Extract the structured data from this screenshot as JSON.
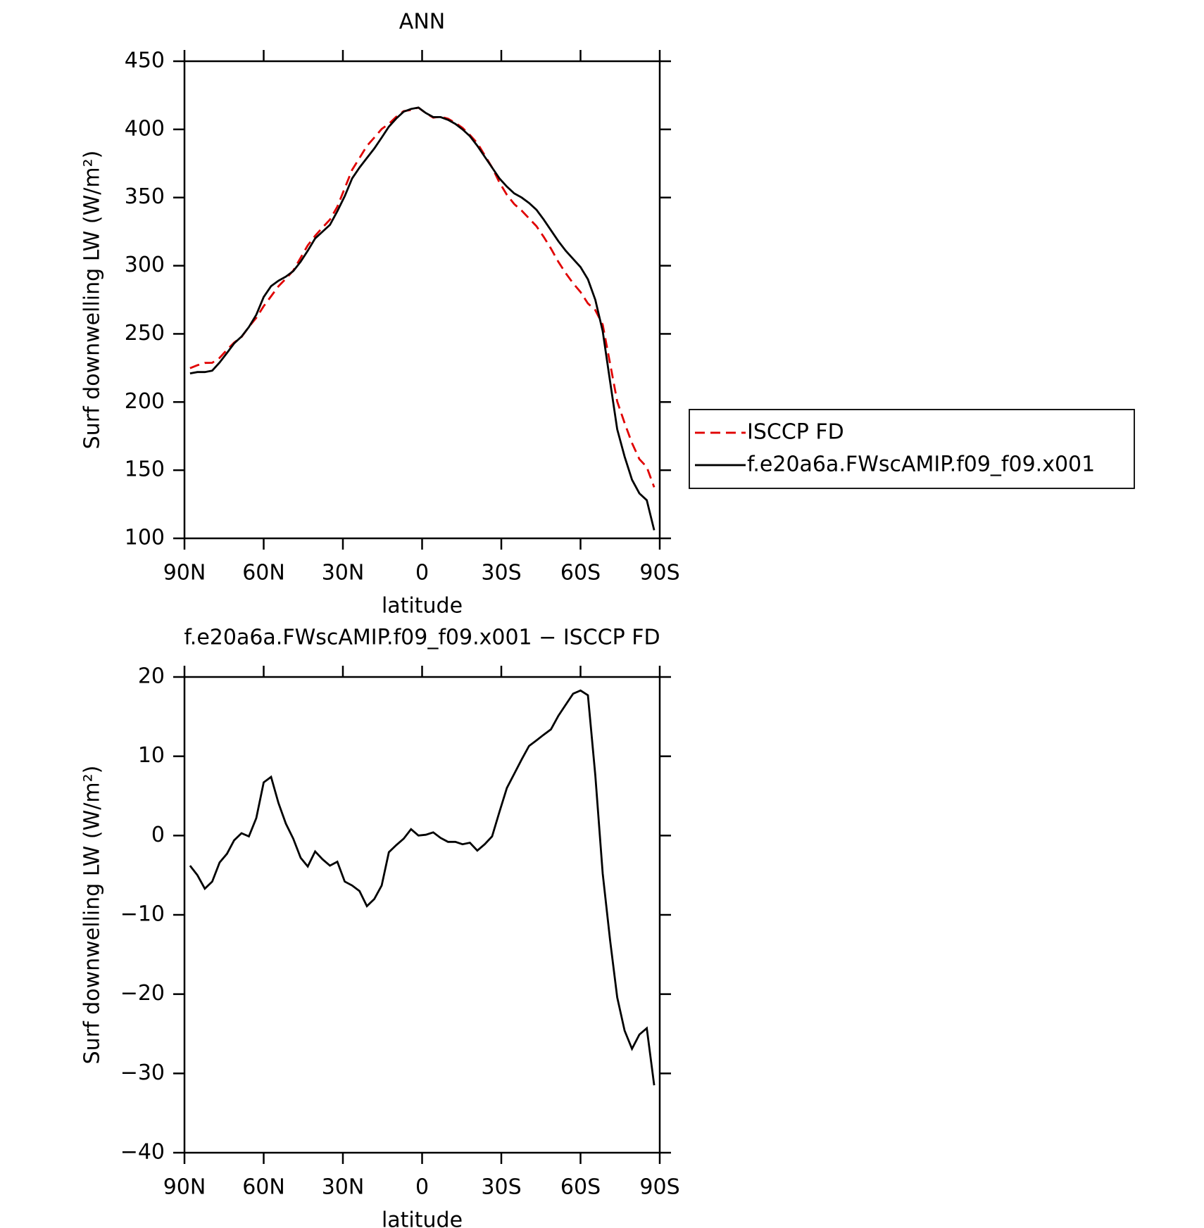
{
  "chart_data": [
    {
      "type": "line",
      "title": "ANN",
      "xlabel": "latitude",
      "ylabel": "Surf downwelling LW (W/m²)",
      "x": [
        87.9,
        85.1,
        82.3,
        79.5,
        76.7,
        73.9,
        71.2,
        68.4,
        65.6,
        62.8,
        60,
        57.2,
        54.4,
        51.6,
        48.8,
        46,
        43.3,
        40.5,
        37.7,
        34.9,
        32.1,
        29.3,
        26.5,
        23.7,
        20.9,
        18.1,
        15.3,
        12.6,
        9.8,
        7,
        4.2,
        1.4,
        -1.4,
        -4.2,
        -7,
        -9.8,
        -12.6,
        -15.3,
        -18.1,
        -20.9,
        -23.7,
        -26.5,
        -29.3,
        -32.1,
        -34.9,
        -37.7,
        -40.5,
        -43.3,
        -46,
        -48.8,
        -51.6,
        -54.4,
        -57.2,
        -60,
        -62.8,
        -65.6,
        -68.4,
        -71.2,
        -73.9,
        -76.7,
        -79.5,
        -82.3,
        -85.1,
        -87.9
      ],
      "series": [
        {
          "name": "ISCCP FD",
          "color": "#e00000",
          "linestyle": "dashed",
          "values": [
            224.8,
            227,
            228.7,
            228.8,
            232.4,
            238.3,
            243.6,
            247.7,
            255.1,
            261.8,
            270.3,
            277.6,
            284.9,
            290.5,
            296.4,
            305.8,
            314.9,
            322,
            328,
            333.8,
            343.3,
            356.8,
            370.3,
            379,
            387.9,
            394,
            400.3,
            404.1,
            409.2,
            413.4,
            414.2,
            416,
            411.9,
            408.6,
            409.3,
            407.8,
            404.8,
            401.1,
            395.9,
            389.9,
            381.1,
            372.1,
            361,
            352,
            345.2,
            340.4,
            334.7,
            329,
            321.3,
            312.6,
            302.9,
            294.5,
            287.1,
            280.7,
            272.3,
            267.4,
            256.8,
            228.2,
            200.4,
            184.6,
            169.9,
            158.1,
            152.3,
            137.5
          ]
        },
        {
          "name": "f.e20a6a.FWscAMIP.f09_f09.x001",
          "color": "#000000",
          "linestyle": "solid",
          "values": [
            221,
            222,
            222,
            223,
            229,
            236,
            243,
            248,
            255,
            264,
            277,
            285,
            289,
            292,
            296,
            303,
            311,
            320,
            325,
            330,
            340,
            351,
            364,
            372,
            379,
            386,
            394,
            402,
            408,
            413,
            415,
            416,
            412,
            409,
            409,
            407,
            404,
            400,
            395,
            388,
            380,
            372,
            364,
            358,
            353,
            350,
            346,
            341,
            334,
            326,
            318,
            311,
            305,
            299,
            290,
            275,
            252,
            215,
            180,
            160,
            143,
            133,
            128,
            106
          ]
        }
      ],
      "xlim": [
        90,
        -90
      ],
      "xticks": [
        {
          "value": 90,
          "label": "90N"
        },
        {
          "value": 60,
          "label": "60N"
        },
        {
          "value": 30,
          "label": "30N"
        },
        0,
        {
          "value": -30,
          "label": "30S"
        },
        {
          "value": -60,
          "label": "60S"
        },
        {
          "value": -90,
          "label": "90S"
        }
      ],
      "ylim": [
        100,
        450
      ],
      "yticks": [
        100,
        150,
        200,
        250,
        300,
        350,
        400,
        450
      ],
      "legend": "right"
    },
    {
      "type": "line",
      "title": "f.e20a6a.FWscAMIP.f09_f09.x001 − ISCCP FD",
      "xlabel": "latitude",
      "ylabel": "Surf downwelling LW (W/m²)",
      "x": [
        87.9,
        85.1,
        82.3,
        79.5,
        76.7,
        73.9,
        71.2,
        68.4,
        65.6,
        62.8,
        60,
        57.2,
        54.4,
        51.6,
        48.8,
        46,
        43.3,
        40.5,
        37.7,
        34.9,
        32.1,
        29.3,
        26.5,
        23.7,
        20.9,
        18.1,
        15.3,
        12.6,
        9.8,
        7,
        4.2,
        1.4,
        -1.4,
        -4.2,
        -7,
        -9.8,
        -12.6,
        -15.3,
        -18.1,
        -20.9,
        -23.7,
        -26.5,
        -29.3,
        -32.1,
        -34.9,
        -37.7,
        -40.5,
        -43.3,
        -46,
        -48.8,
        -51.6,
        -54.4,
        -57.2,
        -60,
        -62.8,
        -65.6,
        -68.4,
        -71.2,
        -73.9,
        -76.7,
        -79.5,
        -82.3,
        -85.1,
        -87.9
      ],
      "series": [
        {
          "color": "#000000",
          "linestyle": "solid",
          "values": [
            -3.8,
            -5,
            -6.7,
            -5.8,
            -3.4,
            -2.3,
            -0.6,
            0.3,
            -0.1,
            2.2,
            6.7,
            7.4,
            4.1,
            1.5,
            -0.4,
            -2.8,
            -3.9,
            -2,
            -3,
            -3.8,
            -3.3,
            -5.8,
            -6.3,
            -7,
            -8.9,
            -8,
            -6.3,
            -2.1,
            -1.2,
            -0.4,
            0.8,
            0,
            0.1,
            0.4,
            -0.3,
            -0.8,
            -0.8,
            -1.1,
            -0.9,
            -1.9,
            -1.1,
            -0.1,
            3,
            6,
            7.8,
            9.6,
            11.3,
            12,
            12.7,
            13.4,
            15.1,
            16.5,
            17.9,
            18.3,
            17.7,
            7.6,
            -4.8,
            -13.2,
            -20.4,
            -24.6,
            -26.9,
            -25.1,
            -24.3,
            -31.5
          ]
        }
      ],
      "xlim": [
        90,
        -90
      ],
      "xticks": [
        {
          "value": 90,
          "label": "90N"
        },
        {
          "value": 60,
          "label": "60N"
        },
        {
          "value": 30,
          "label": "30N"
        },
        0,
        {
          "value": -30,
          "label": "30S"
        },
        {
          "value": -60,
          "label": "60S"
        },
        {
          "value": -90,
          "label": "90S"
        }
      ],
      "ylim": [
        -40,
        20
      ],
      "yticks": [
        {
          "value": -40,
          "label": "−40"
        },
        {
          "value": -30,
          "label": "−30"
        },
        {
          "value": -20,
          "label": "−20"
        },
        {
          "value": -10,
          "label": "−10"
        },
        0,
        10,
        20
      ]
    }
  ]
}
